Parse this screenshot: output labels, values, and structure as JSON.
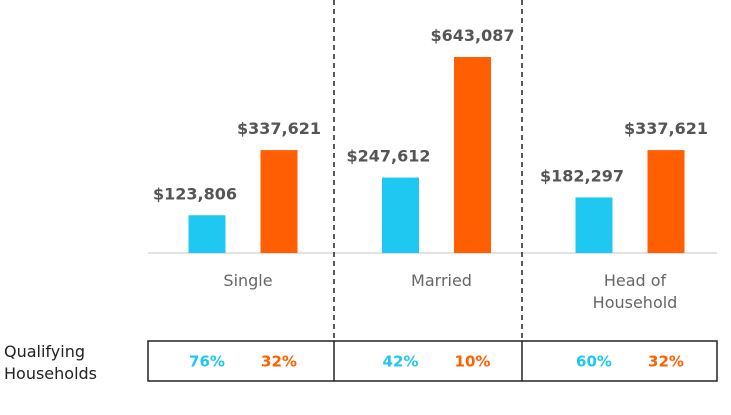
{
  "chart_data": {
    "type": "bar",
    "categories": [
      "Single",
      "Married",
      "Head of Household"
    ],
    "series": [
      {
        "color": "#1ec8f0",
        "values": [
          123806,
          247612,
          182297
        ],
        "value_labels": [
          "$123,806",
          "$247,612",
          "$182,297"
        ]
      },
      {
        "color": "#ff5f00",
        "values": [
          337621,
          643087,
          337621
        ],
        "value_labels": [
          "$337,621",
          "$643,087",
          "$337,621"
        ]
      }
    ]
  },
  "table": {
    "row_label": "Qualifying Households",
    "cells": [
      [
        "76%",
        "32%"
      ],
      [
        "42%",
        "10%"
      ],
      [
        "60%",
        "32%"
      ]
    ]
  }
}
